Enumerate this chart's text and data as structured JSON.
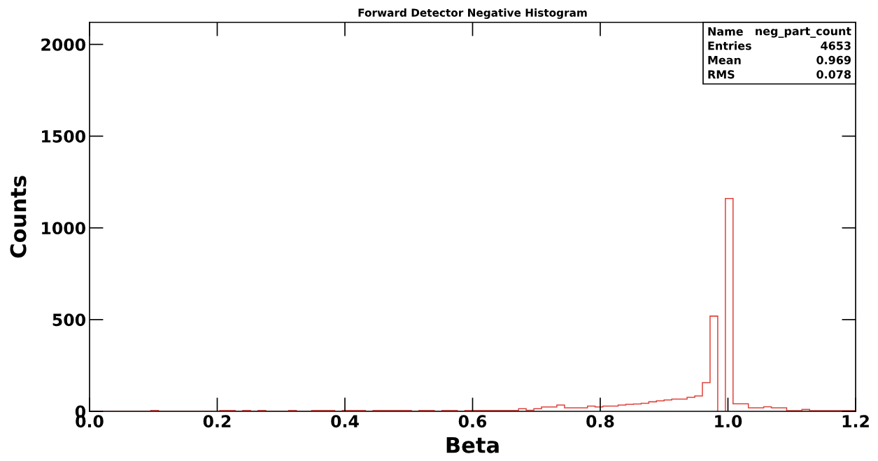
{
  "chart_data": {
    "type": "histogram",
    "title": "Forward Detector Negative Histogram",
    "xlabel": "Beta",
    "ylabel": "Counts",
    "bins": [
      0,
      0.012,
      0.024,
      0.036,
      0.048,
      0.06,
      0.072,
      0.084,
      0.096,
      0.108,
      0.12,
      0.132,
      0.144,
      0.156,
      0.168,
      0.18,
      0.192,
      0.204,
      0.216,
      0.228,
      0.24,
      0.252,
      0.264,
      0.276,
      0.288,
      0.3,
      0.312,
      0.324,
      0.336,
      0.348,
      0.36,
      0.372,
      0.384,
      0.396,
      0.408,
      0.42,
      0.432,
      0.444,
      0.456,
      0.468,
      0.48,
      0.492,
      0.504,
      0.516,
      0.528,
      0.54,
      0.552,
      0.564,
      0.576,
      0.588,
      0.6,
      0.612,
      0.624,
      0.636,
      0.648,
      0.66,
      0.672,
      0.684,
      0.696,
      0.708,
      0.72,
      0.732,
      0.744,
      0.756,
      0.768,
      0.78,
      0.792,
      0.804,
      0.816,
      0.828,
      0.84,
      0.852,
      0.864,
      0.876,
      0.888,
      0.9,
      0.912,
      0.924,
      0.936,
      0.948,
      0.96,
      0.972,
      0.984,
      0.996,
      1.008,
      1.02,
      1.032,
      1.044,
      1.056,
      1.068,
      1.08,
      1.092,
      1.104,
      1.116,
      1.128,
      1.14,
      1.152,
      1.164,
      1.176,
      1.188,
      1.2
    ],
    "values": [
      0,
      0,
      0,
      0,
      0,
      0,
      0,
      0,
      5,
      0,
      0,
      0,
      0,
      0,
      0,
      0,
      0,
      5,
      5,
      0,
      5,
      0,
      5,
      0,
      0,
      0,
      5,
      0,
      0,
      5,
      5,
      5,
      0,
      5,
      5,
      5,
      0,
      5,
      5,
      5,
      5,
      5,
      0,
      5,
      5,
      0,
      5,
      5,
      0,
      5,
      5,
      5,
      5,
      5,
      5,
      5,
      14,
      6,
      14,
      24,
      24,
      34,
      19,
      19,
      19,
      29,
      24,
      29,
      29,
      34,
      38,
      40,
      44,
      52,
      57,
      62,
      67,
      67,
      76,
      84,
      156,
      519,
      null,
      1160,
      41,
      41,
      19,
      19,
      25,
      19,
      19,
      4,
      4,
      10,
      4,
      4,
      4,
      4,
      4,
      4
    ],
    "color": "#e0443c",
    "xlim": [
      0,
      1.2
    ],
    "xticks": [
      {
        "value": 0,
        "label": "0.0"
      },
      0.2,
      0.4,
      0.6,
      0.8,
      {
        "value": 1,
        "label": "1.0"
      },
      1.2
    ],
    "ylim": [
      0,
      2120
    ],
    "yticks": [
      0,
      500,
      1000,
      1500,
      2000
    ],
    "annotations": [
      "Name",
      "neg_part_count",
      "Entries",
      "4653",
      "Mean",
      "0.969",
      "RMS",
      "0.078"
    ]
  }
}
